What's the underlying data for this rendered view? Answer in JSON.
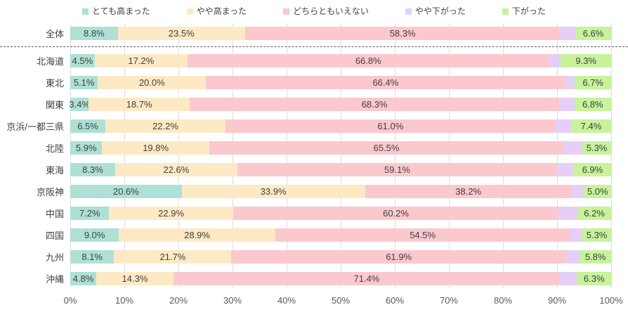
{
  "chart_data": {
    "type": "bar",
    "orientation": "horizontal",
    "stacked": true,
    "value_unit": "%",
    "xlim": [
      0,
      100
    ],
    "grid": true,
    "legend_position": "top",
    "x_tick_labels": [
      "0%",
      "10%",
      "20%",
      "30%",
      "40%",
      "50%",
      "60%",
      "70%",
      "80%",
      "90%",
      "100%"
    ],
    "series_names": [
      "とても高まった",
      "やや高まった",
      "どちらともいえない",
      "やや下がった",
      "下がった"
    ],
    "series_colors": [
      "#aee0d5",
      "#fdeac5",
      "#fbc8ce",
      "#e5cff7",
      "#c7f39b"
    ],
    "categories": [
      "全体",
      "北海道",
      "東北",
      "関東",
      "京浜/一都三県",
      "北陸",
      "東海",
      "京阪神",
      "中国",
      "四国",
      "九州",
      "沖縄"
    ],
    "separator_after_category": "全体",
    "rows": [
      {
        "category": "全体",
        "values": [
          8.8,
          23.5,
          58.3,
          2.8,
          6.6
        ],
        "labels": [
          "8.8%",
          "23.5%",
          "58.3%",
          "",
          "6.6%"
        ]
      },
      {
        "category": "北海道",
        "values": [
          4.5,
          17.2,
          66.8,
          2.2,
          9.3
        ],
        "labels": [
          "4.5%",
          "17.2%",
          "66.8%",
          "",
          "9.3%"
        ]
      },
      {
        "category": "東北",
        "values": [
          5.1,
          20.0,
          66.4,
          1.8,
          6.7
        ],
        "labels": [
          "5.1%",
          "20.0%",
          "66.4%",
          "",
          "6.7%"
        ]
      },
      {
        "category": "関東",
        "values": [
          3.4,
          18.7,
          68.3,
          2.8,
          6.8
        ],
        "labels": [
          "3.4%",
          "18.7%",
          "68.3%",
          "",
          "6.8%"
        ]
      },
      {
        "category": "京浜/一都三県",
        "values": [
          6.5,
          22.2,
          61.0,
          2.9,
          7.4
        ],
        "labels": [
          "6.5%",
          "22.2%",
          "61.0%",
          "",
          "7.4%"
        ]
      },
      {
        "category": "北陸",
        "values": [
          5.9,
          19.8,
          65.5,
          3.5,
          5.3
        ],
        "labels": [
          "5.9%",
          "19.8%",
          "65.5%",
          "",
          "5.3%"
        ]
      },
      {
        "category": "東海",
        "values": [
          8.3,
          22.6,
          59.1,
          3.1,
          6.9
        ],
        "labels": [
          "8.3%",
          "22.6%",
          "59.1%",
          "",
          "6.9%"
        ]
      },
      {
        "category": "京阪神",
        "values": [
          20.6,
          33.9,
          38.2,
          2.3,
          5.0
        ],
        "labels": [
          "20.6%",
          "33.9%",
          "38.2%",
          "",
          "5.0%"
        ]
      },
      {
        "category": "中国",
        "values": [
          7.2,
          22.9,
          60.2,
          3.5,
          6.2
        ],
        "labels": [
          "7.2%",
          "22.9%",
          "60.2%",
          "",
          "6.2%"
        ]
      },
      {
        "category": "四国",
        "values": [
          9.0,
          28.9,
          54.5,
          2.3,
          5.3
        ],
        "labels": [
          "9.0%",
          "28.9%",
          "54.5%",
          "",
          "5.3%"
        ]
      },
      {
        "category": "九州",
        "values": [
          8.1,
          21.7,
          61.9,
          2.5,
          5.8
        ],
        "labels": [
          "8.1%",
          "21.7%",
          "61.9%",
          "",
          "5.8%"
        ]
      },
      {
        "category": "沖縄",
        "values": [
          4.8,
          14.3,
          71.4,
          3.2,
          6.3
        ],
        "labels": [
          "4.8%",
          "14.3%",
          "71.4%",
          "",
          "6.3%"
        ]
      }
    ]
  }
}
